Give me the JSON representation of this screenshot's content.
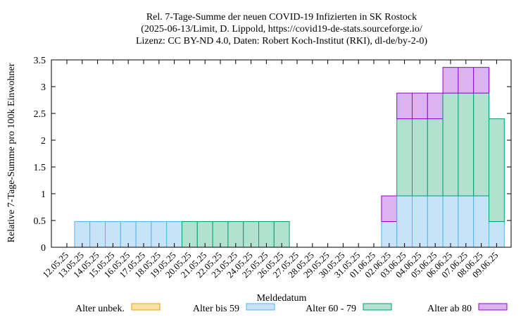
{
  "chart_data": {
    "type": "bar",
    "stacked": true,
    "title_lines": [
      "Rel. 7-Tage-Summe der neuen COVID-19 Infizierten in SK Rostock",
      "(2025-06-13/Limit, D. Lippold, https://covid19-de-stats.sourceforge.io/",
      "Lizenz: CC BY-ND 4.0, Daten: Robert Koch-Institut (RKI), dl-de/by-2-0)"
    ],
    "xlabel": "Meldedatum",
    "ylabel": "Relative 7-Tage-Summe pro 100k Einwohner",
    "ylim": [
      0,
      3.5
    ],
    "yticks": [
      "0",
      "0.5",
      "1",
      "1.5",
      "2",
      "2.5",
      "3",
      "3.5"
    ],
    "categories": [
      "12.05.25",
      "13.05.25",
      "14.05.25",
      "15.05.25",
      "16.05.25",
      "17.05.25",
      "18.05.25",
      "19.05.25",
      "20.05.25",
      "21.05.25",
      "22.05.25",
      "23.05.25",
      "24.05.25",
      "25.05.25",
      "26.05.25",
      "27.05.25",
      "28.05.25",
      "29.05.25",
      "30.05.25",
      "31.05.25",
      "01.06.25",
      "02.06.25",
      "03.06.25",
      "04.06.25",
      "05.06.25",
      "06.06.25",
      "07.06.25",
      "08.06.25",
      "09.06.25"
    ],
    "series": [
      {
        "name": "Alter unbek.",
        "fill": "#fde2a8",
        "stroke": "#e69f00",
        "values": [
          0,
          0,
          0,
          0,
          0,
          0,
          0,
          0,
          0,
          0,
          0,
          0,
          0,
          0,
          0,
          0,
          0,
          0,
          0,
          0,
          0,
          0,
          0,
          0,
          0,
          0,
          0,
          0,
          0
        ]
      },
      {
        "name": "Alter bis 59",
        "fill": "#c6e3f7",
        "stroke": "#56b4e9",
        "values": [
          0,
          0.48,
          0.48,
          0.48,
          0.48,
          0.48,
          0.48,
          0.48,
          0,
          0,
          0,
          0,
          0,
          0,
          0,
          0,
          0,
          0,
          0,
          0,
          0,
          0.48,
          0.96,
          0.96,
          0.96,
          0.96,
          0.96,
          0.96,
          0.48
        ]
      },
      {
        "name": "Alter 60 - 79",
        "fill": "#b2e1cf",
        "stroke": "#009e73",
        "values": [
          0,
          0,
          0,
          0,
          0,
          0,
          0,
          0,
          0.48,
          0.48,
          0.48,
          0.48,
          0.48,
          0.48,
          0.48,
          0,
          0,
          0,
          0,
          0,
          0,
          0,
          1.44,
          1.44,
          1.44,
          1.92,
          1.92,
          1.92,
          1.92
        ]
      },
      {
        "name": "Alter ab 80",
        "fill": "#dcb3f0",
        "stroke": "#9400d3",
        "values": [
          0,
          0,
          0,
          0,
          0,
          0,
          0,
          0,
          0,
          0,
          0,
          0,
          0,
          0,
          0,
          0,
          0,
          0,
          0,
          0,
          0,
          0.48,
          0.48,
          0.48,
          0.48,
          0.48,
          0.48,
          0.48,
          0
        ]
      }
    ],
    "legend_position": "bottom",
    "grid": false
  }
}
